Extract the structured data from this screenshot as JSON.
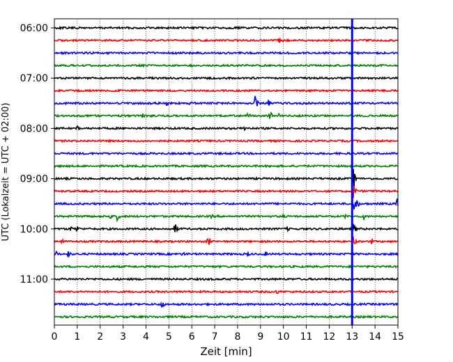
{
  "chart_data": {
    "type": "line",
    "title": "",
    "xlabel": "Zeit  [min]",
    "ylabel": "UTC (Lokalzeit = UTC + 02:00)",
    "xlim": [
      0,
      15
    ],
    "x_ticks": [
      0,
      1,
      2,
      3,
      4,
      5,
      6,
      7,
      8,
      9,
      10,
      11,
      12,
      13,
      14,
      15
    ],
    "x_tick_labels": [
      "0",
      "1",
      "2",
      "3",
      "4",
      "5",
      "6",
      "7",
      "8",
      "9",
      "10",
      "11",
      "12",
      "13",
      "14",
      "15"
    ],
    "y_tick_labels": [
      "06:00",
      "07:00",
      "08:00",
      "09:00",
      "10:00",
      "11:00"
    ],
    "grid": "vertical dotted",
    "trace_colors": [
      "#000000",
      "#ff0000",
      "#0000ff",
      "#008000"
    ],
    "marker_line": {
      "x": 13.0,
      "color": "#0000ff"
    },
    "rows": [
      {
        "time": "06:00",
        "color": "#000000",
        "events": []
      },
      {
        "time": "06:15",
        "color": "#ff0000",
        "events": [
          {
            "t": 9.8,
            "a": 5
          },
          {
            "t": 10.0,
            "a": 4
          }
        ]
      },
      {
        "time": "06:30",
        "color": "#0000ff",
        "events": []
      },
      {
        "time": "06:45",
        "color": "#008000",
        "events": []
      },
      {
        "time": "07:00",
        "color": "#000000",
        "events": []
      },
      {
        "time": "07:15",
        "color": "#ff0000",
        "events": []
      },
      {
        "time": "07:30",
        "color": "#0000ff",
        "events": [
          {
            "t": 4.9,
            "a": 4
          },
          {
            "t": 5.9,
            "a": 4
          },
          {
            "t": 8.75,
            "a": 13
          },
          {
            "t": 9.35,
            "a": 6
          }
        ]
      },
      {
        "time": "07:45",
        "color": "#008000",
        "events": [
          {
            "t": 3.85,
            "a": 4
          },
          {
            "t": 8.45,
            "a": 6
          },
          {
            "t": 9.4,
            "a": 9
          },
          {
            "t": 9.75,
            "a": 5
          }
        ]
      },
      {
        "time": "08:00",
        "color": "#000000",
        "events": [
          {
            "t": 1.0,
            "a": 4
          },
          {
            "t": 8.3,
            "a": 5
          }
        ]
      },
      {
        "time": "08:15",
        "color": "#ff0000",
        "events": []
      },
      {
        "time": "08:30",
        "color": "#0000ff",
        "events": []
      },
      {
        "time": "08:45",
        "color": "#008000",
        "events": []
      },
      {
        "time": "09:00",
        "color": "#000000",
        "events": [
          {
            "t": 13.05,
            "a": 16
          }
        ]
      },
      {
        "time": "09:15",
        "color": "#ff0000",
        "events": [
          {
            "t": 13.05,
            "a": 12
          }
        ]
      },
      {
        "time": "09:30",
        "color": "#0000ff",
        "events": [
          {
            "t": 13.1,
            "a": 20
          },
          {
            "t": 14.95,
            "a": 10
          }
        ]
      },
      {
        "time": "09:45",
        "color": "#008000",
        "events": [
          {
            "t": 1.35,
            "a": 6
          },
          {
            "t": 2.4,
            "a": 7
          },
          {
            "t": 2.75,
            "a": 8
          },
          {
            "t": 6.85,
            "a": 4
          },
          {
            "t": 9.95,
            "a": 4
          },
          {
            "t": 12.7,
            "a": 4
          },
          {
            "t": 13.5,
            "a": 6
          }
        ]
      },
      {
        "time": "10:00",
        "color": "#000000",
        "events": [
          {
            "t": 0.7,
            "a": 6
          },
          {
            "t": 0.95,
            "a": 8
          },
          {
            "t": 5.25,
            "a": 10
          },
          {
            "t": 10.15,
            "a": 5
          },
          {
            "t": 13.05,
            "a": 9
          }
        ]
      },
      {
        "time": "10:15",
        "color": "#ff0000",
        "events": [
          {
            "t": 0.3,
            "a": 7
          },
          {
            "t": 6.7,
            "a": 10
          },
          {
            "t": 13.05,
            "a": 8
          },
          {
            "t": 13.85,
            "a": 5
          }
        ]
      },
      {
        "time": "10:30",
        "color": "#0000ff",
        "events": [
          {
            "t": 0.1,
            "a": 5
          },
          {
            "t": 0.6,
            "a": 6
          },
          {
            "t": 5.6,
            "a": 5
          },
          {
            "t": 8.4,
            "a": 5
          },
          {
            "t": 9.2,
            "a": 4
          }
        ]
      },
      {
        "time": "10:45",
        "color": "#008000",
        "events": []
      },
      {
        "time": "11:00",
        "color": "#000000",
        "events": [
          {
            "t": 6.6,
            "a": 4
          }
        ]
      },
      {
        "time": "11:15",
        "color": "#ff0000",
        "events": [
          {
            "t": 9.7,
            "a": 5
          }
        ]
      },
      {
        "time": "11:30",
        "color": "#0000ff",
        "events": [
          {
            "t": 4.65,
            "a": 10
          }
        ]
      },
      {
        "time": "11:45",
        "color": "#008000",
        "events": []
      }
    ]
  }
}
